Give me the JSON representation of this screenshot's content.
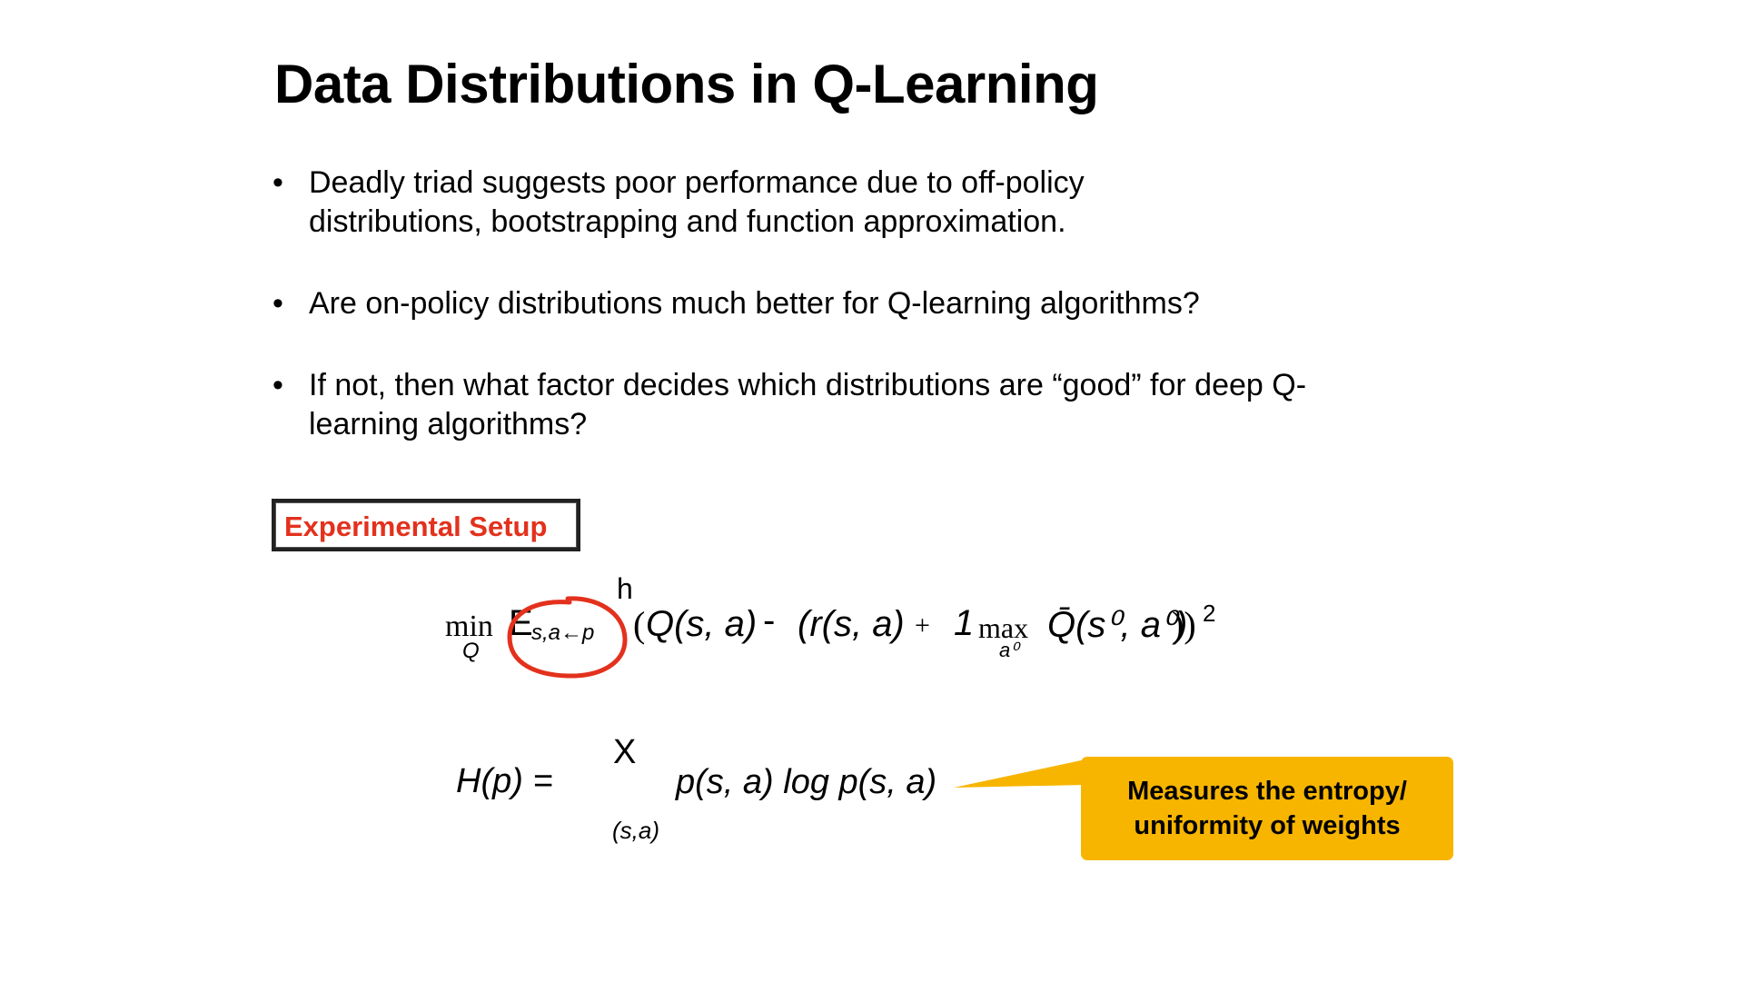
{
  "slide": {
    "title": "Data Distributions in Q-Learning",
    "bullets": [
      {
        "line1": "Deadly triad suggests poor performance due to off-policy",
        "line2": "distributions, bootstrapping and function approximation."
      },
      {
        "line1": "Are on-policy distributions much better for Q-learning algorithms?",
        "line2": ""
      },
      {
        "line1": "If not, then what factor decides which distributions are “good” for deep Q-",
        "line2": "learning algorithms?"
      }
    ],
    "setup_label": "Experimental Setup",
    "eq1": {
      "h": "h",
      "min": "min",
      "min_sub": "Q",
      "E": "E",
      "E_sub": "s,a←p",
      "open": "(",
      "Q": "Q(s, a)",
      "minus": "-",
      "target_open": "(r(s, a)",
      "plus": "+",
      "gamma": "1",
      "max": "max",
      "max_sub": "a⁰",
      "Qbar": "Q̄(s⁰, a⁰)",
      "close": "))",
      "power": "2"
    },
    "eq2": {
      "lhs": "H(p) =",
      "sum": "X",
      "sum_sub": "(s,a)",
      "rhs": "p(s, a) log p(s, a)"
    },
    "callout": {
      "line1": "Measures the entropy/",
      "line2": "uniformity of weights",
      "color": "#f7b500"
    },
    "accent_colors": {
      "label_red": "#e3311d",
      "circle_red": "#e3311d"
    }
  }
}
